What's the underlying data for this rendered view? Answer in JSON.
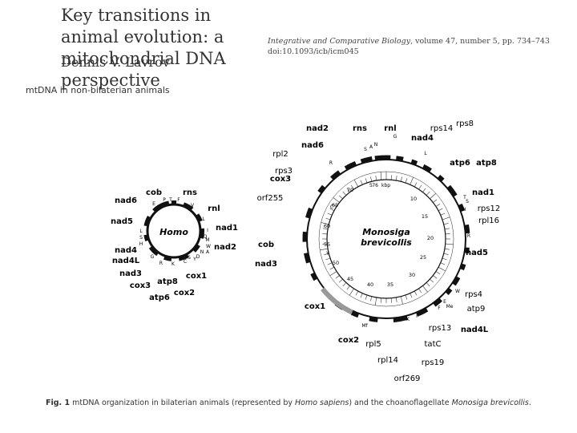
{
  "header": {
    "title": "Key transitions in animal evolution: a mitochondrial DNA perspective",
    "author": "Dennis V. Lavrov",
    "journal": "Integrative and Comparative Biology",
    "citation_rest": ", volume 47, number 5, pp. 734–743",
    "doi": "doi:10.1093/icb/icm045"
  },
  "section_label": "mtDNA in non-bilaterian animals",
  "caption": {
    "fig": "Fig. 1",
    "text1": " mtDNA organization in bilaterian animals (represented by ",
    "sp1": "Homo sapiens",
    "text2": ") and the choanoflagellate ",
    "sp2": "Monosiga brevicollis",
    "text3": "."
  },
  "homo": {
    "name": "Homo",
    "genes": [
      {
        "t": "cob",
        "bold": true
      },
      {
        "t": "rns",
        "bold": true
      },
      {
        "t": "nad6",
        "bold": true
      },
      {
        "t": "rnl",
        "bold": true
      },
      {
        "t": "nad5",
        "bold": true
      },
      {
        "t": "nad1",
        "bold": true
      },
      {
        "t": "nad2",
        "bold": true
      },
      {
        "t": "nad4",
        "bold": true
      },
      {
        "t": "nad4L",
        "bold": true
      },
      {
        "t": "nad3",
        "bold": true
      },
      {
        "t": "cox1",
        "bold": true
      },
      {
        "t": "cox3",
        "bold": true
      },
      {
        "t": "atp8",
        "bold": true
      },
      {
        "t": "cox2",
        "bold": true
      },
      {
        "t": "atp6",
        "bold": true
      }
    ],
    "trna": [
      "P",
      "T",
      "F",
      "V",
      "E",
      "L",
      "I",
      "Q",
      "M",
      "L",
      "S",
      "H",
      "W",
      "A",
      "N",
      "G",
      "R",
      "K",
      "C",
      "S",
      "Y",
      "D"
    ]
  },
  "monosiga": {
    "name": "Monosiga brevicollis",
    "name_l1": "Monosiga",
    "name_l2": "brevicollis",
    "scale_unit": "kbp",
    "scale_ticks": [
      "76",
      "5",
      "10",
      "15",
      "20",
      "25",
      "30",
      "35",
      "40",
      "45",
      "50",
      "55",
      "60",
      "65",
      "70"
    ],
    "labels": [
      {
        "t": "nad2",
        "b": true
      },
      {
        "t": "rns",
        "b": true
      },
      {
        "t": "rnl",
        "b": true
      },
      {
        "t": "rps14",
        "b": false
      },
      {
        "t": "rps8",
        "b": false
      },
      {
        "t": "nad6",
        "b": true
      },
      {
        "t": "nad4",
        "b": true
      },
      {
        "t": "rpl2",
        "b": false
      },
      {
        "t": "atp6",
        "b": true
      },
      {
        "t": "atp8",
        "b": true
      },
      {
        "t": "rps3",
        "b": false
      },
      {
        "t": "cox3",
        "b": true
      },
      {
        "t": "nad1",
        "b": true
      },
      {
        "t": "orf255",
        "b": false
      },
      {
        "t": "rps12",
        "b": false
      },
      {
        "t": "rpl16",
        "b": false
      },
      {
        "t": "cob",
        "b": true
      },
      {
        "t": "nad5",
        "b": true
      },
      {
        "t": "nad3",
        "b": true
      },
      {
        "t": "rps4",
        "b": false
      },
      {
        "t": "atp9",
        "b": false
      },
      {
        "t": "cox1",
        "b": true
      },
      {
        "t": "rps13",
        "b": false
      },
      {
        "t": "nad4L",
        "b": true
      },
      {
        "t": "cox2",
        "b": true
      },
      {
        "t": "rpl5",
        "b": false
      },
      {
        "t": "tatC",
        "b": false
      },
      {
        "t": "rpl14",
        "b": false
      },
      {
        "t": "rps19",
        "b": false
      },
      {
        "t": "orf269",
        "b": false
      }
    ],
    "trna": [
      "S",
      "A",
      "N",
      "G",
      "L",
      "T",
      "S",
      "H",
      "W",
      "E",
      "F",
      "Me",
      "I",
      "K",
      "Mf",
      "R",
      "C",
      "Y",
      "R"
    ]
  }
}
